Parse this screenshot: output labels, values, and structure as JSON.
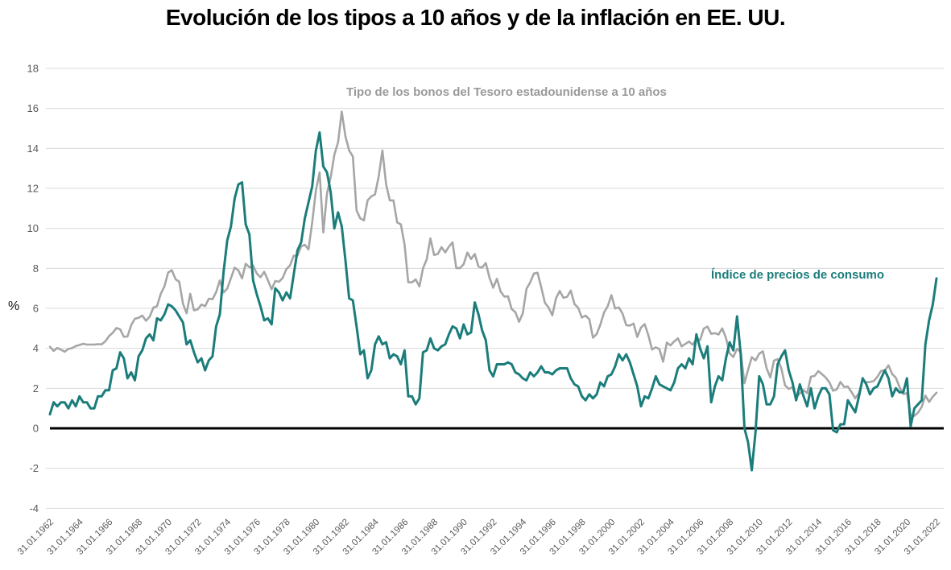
{
  "title": "Evolución de los tipos a 10 años y de la inflación en EE. UU.",
  "colors": {
    "background": "#ffffff",
    "title": "#000000",
    "gridline": "#d9d9d9",
    "zero_line": "#000000",
    "axis_label": "#595959",
    "bond_line": "#a6a6a6",
    "bond_label": "#999999",
    "cpi_line": "#1b7d7b",
    "cpi_label": "#1b7d7b"
  },
  "chart_data": {
    "type": "line",
    "title": "Evolución de los tipos a 10 años y de la inflación en EE. UU.",
    "xlabel": "",
    "ylabel": "%",
    "ylim": [
      -4,
      18
    ],
    "yticks": [
      -4,
      -2,
      0,
      2,
      4,
      6,
      8,
      10,
      12,
      14,
      16,
      18
    ],
    "grid": "horizontal",
    "legend_position": "inline-labels",
    "x_start_year": 1962,
    "x_step_years": 0.25,
    "xtick_labels": [
      "31.01.1962",
      "31.01.1964",
      "31.01.1966",
      "31.01.1968",
      "31.01.1970",
      "31.01.1972",
      "31.01.1974",
      "31.01.1976",
      "31.01.1978",
      "31.01.1980",
      "31.01.1982",
      "31.01.1984",
      "31.01.1986",
      "31.01.1988",
      "31.01.1990",
      "31.01.1992",
      "31.01.1994",
      "31.01.1996",
      "31.01.1998",
      "31.01.2000",
      "31.01.2002",
      "31.01.2004",
      "31.01.2006",
      "31.01.2008",
      "31.01.2010",
      "31.01.2012",
      "31.01.2014",
      "31.01.2016",
      "31.01.2018",
      "31.01.2020",
      "31.01.2022"
    ],
    "series": [
      {
        "name": "Tipo de los bonos del Tesoro estadounidense a 10 años",
        "color": "#a6a6a6",
        "label_color": "#999999",
        "values": [
          4.08,
          3.87,
          4.02,
          3.93,
          3.83,
          3.97,
          4.01,
          4.11,
          4.17,
          4.23,
          4.19,
          4.19,
          4.19,
          4.21,
          4.2,
          4.35,
          4.61,
          4.78,
          5.02,
          4.95,
          4.58,
          4.59,
          5.16,
          5.48,
          5.53,
          5.64,
          5.38,
          5.58,
          6.04,
          6.11,
          6.72,
          7.1,
          7.79,
          7.91,
          7.46,
          7.33,
          6.24,
          5.75,
          6.73,
          5.9,
          5.95,
          6.19,
          6.11,
          6.48,
          6.46,
          6.81,
          7.4,
          6.79,
          6.99,
          7.51,
          8.04,
          7.9,
          7.5,
          8.23,
          8.06,
          8.14,
          7.74,
          7.56,
          7.83,
          7.41,
          6.95,
          7.37,
          7.33,
          7.52,
          7.96,
          8.15,
          8.64,
          8.64,
          9.1,
          9.18,
          8.95,
          10.3,
          11.9,
          12.8,
          9.8,
          11.75,
          12.57,
          13.68,
          14.3,
          15.84,
          14.6,
          13.9,
          13.6,
          10.9,
          10.5,
          10.4,
          11.4,
          11.6,
          11.7,
          12.6,
          13.9,
          12.2,
          11.4,
          11.4,
          10.3,
          10.2,
          9.2,
          7.3,
          7.3,
          7.45,
          7.1,
          8.0,
          8.45,
          9.5,
          8.67,
          8.72,
          9.06,
          8.8,
          9.09,
          9.3,
          8.02,
          8.01,
          8.21,
          8.79,
          8.47,
          8.72,
          8.09,
          8.04,
          8.27,
          7.53,
          7.03,
          7.48,
          6.84,
          6.59,
          6.6,
          5.97,
          5.81,
          5.33,
          5.75,
          6.97,
          7.3,
          7.74,
          7.78,
          7.06,
          6.28,
          6.04,
          5.65,
          6.51,
          6.87,
          6.53,
          6.58,
          6.89,
          6.22,
          6.03,
          5.54,
          5.64,
          5.46,
          4.53,
          4.72,
          5.18,
          5.79,
          6.11,
          6.66,
          5.99,
          6.05,
          5.74,
          5.16,
          5.14,
          5.24,
          4.57,
          5.04,
          5.21,
          4.65,
          3.94,
          4.05,
          3.96,
          3.33,
          4.29,
          4.15,
          4.35,
          4.5,
          4.1,
          4.22,
          4.34,
          4.18,
          4.46,
          4.42,
          4.99,
          5.09,
          4.73,
          4.76,
          4.69,
          5.0,
          4.53,
          3.74,
          3.57,
          3.98,
          3.81,
          2.25,
          2.93,
          3.56,
          3.39,
          3.73,
          3.85,
          3.01,
          2.54,
          3.39,
          3.46,
          3.0,
          2.15,
          1.97,
          2.05,
          1.53,
          1.75,
          1.91,
          1.76,
          2.58,
          2.62,
          2.86,
          2.71,
          2.54,
          2.3,
          1.88,
          1.94,
          2.32,
          2.07,
          2.09,
          1.81,
          1.5,
          1.76,
          2.43,
          2.3,
          2.32,
          2.36,
          2.58,
          2.87,
          2.89,
          3.15,
          2.71,
          2.53,
          2.06,
          1.71,
          1.76,
          0.66,
          0.62,
          0.79,
          1.08,
          1.64,
          1.32,
          1.58,
          1.78
        ]
      },
      {
        "name": "Índice de precios de consumo",
        "color": "#1b7d7b",
        "label_color": "#1b7d7b",
        "values": [
          0.7,
          1.3,
          1.1,
          1.3,
          1.3,
          1.0,
          1.4,
          1.1,
          1.6,
          1.3,
          1.3,
          1.0,
          1.0,
          1.6,
          1.6,
          1.9,
          1.9,
          2.9,
          3.0,
          3.8,
          3.5,
          2.5,
          2.8,
          2.4,
          3.6,
          3.9,
          4.5,
          4.7,
          4.4,
          5.5,
          5.4,
          5.7,
          6.2,
          6.1,
          5.9,
          5.6,
          5.3,
          4.2,
          4.4,
          3.8,
          3.3,
          3.5,
          2.9,
          3.4,
          3.6,
          5.1,
          5.7,
          7.8,
          9.4,
          10.1,
          11.5,
          12.2,
          12.3,
          10.2,
          9.7,
          7.4,
          6.7,
          6.1,
          5.4,
          5.5,
          5.2,
          7.0,
          6.8,
          6.4,
          6.8,
          6.5,
          7.7,
          8.9,
          9.3,
          10.5,
          11.3,
          12.1,
          13.9,
          14.8,
          13.1,
          12.8,
          11.8,
          10.0,
          10.8,
          10.1,
          8.4,
          6.5,
          6.4,
          5.1,
          3.7,
          3.9,
          2.5,
          2.9,
          4.2,
          4.6,
          4.2,
          4.3,
          3.5,
          3.7,
          3.6,
          3.2,
          3.9,
          1.6,
          1.6,
          1.2,
          1.5,
          3.8,
          3.9,
          4.5,
          4.0,
          3.9,
          4.1,
          4.2,
          4.7,
          5.1,
          5.0,
          4.5,
          5.2,
          4.7,
          4.8,
          6.3,
          5.7,
          4.9,
          4.4,
          2.9,
          2.6,
          3.2,
          3.2,
          3.2,
          3.3,
          3.2,
          2.8,
          2.7,
          2.5,
          2.4,
          2.8,
          2.6,
          2.8,
          3.1,
          2.8,
          2.8,
          2.7,
          2.9,
          3.0,
          3.0,
          3.0,
          2.5,
          2.2,
          2.1,
          1.6,
          1.4,
          1.7,
          1.5,
          1.7,
          2.3,
          2.1,
          2.6,
          2.7,
          3.1,
          3.7,
          3.4,
          3.7,
          3.3,
          2.7,
          2.1,
          1.1,
          1.6,
          1.5,
          2.0,
          2.6,
          2.2,
          2.1,
          2.0,
          1.9,
          2.3,
          3.0,
          3.2,
          3.0,
          3.5,
          3.2,
          4.7,
          4.0,
          3.5,
          4.1,
          1.3,
          2.1,
          2.6,
          2.4,
          3.5,
          4.3,
          3.9,
          5.6,
          3.7,
          0.0,
          -0.7,
          -2.1,
          -0.2,
          2.6,
          2.2,
          1.2,
          1.2,
          1.6,
          3.2,
          3.6,
          3.9,
          2.9,
          2.3,
          1.4,
          2.2,
          1.6,
          1.1,
          2.0,
          1.0,
          1.6,
          2.0,
          2.0,
          1.7,
          -0.1,
          -0.2,
          0.2,
          0.2,
          1.4,
          1.1,
          0.8,
          1.6,
          2.5,
          2.2,
          1.7,
          2.0,
          2.1,
          2.5,
          2.9,
          2.5,
          1.6,
          2.0,
          1.8,
          1.8,
          2.5,
          0.1,
          1.0,
          1.2,
          1.4,
          4.2,
          5.4,
          6.2,
          7.5
        ]
      }
    ]
  }
}
